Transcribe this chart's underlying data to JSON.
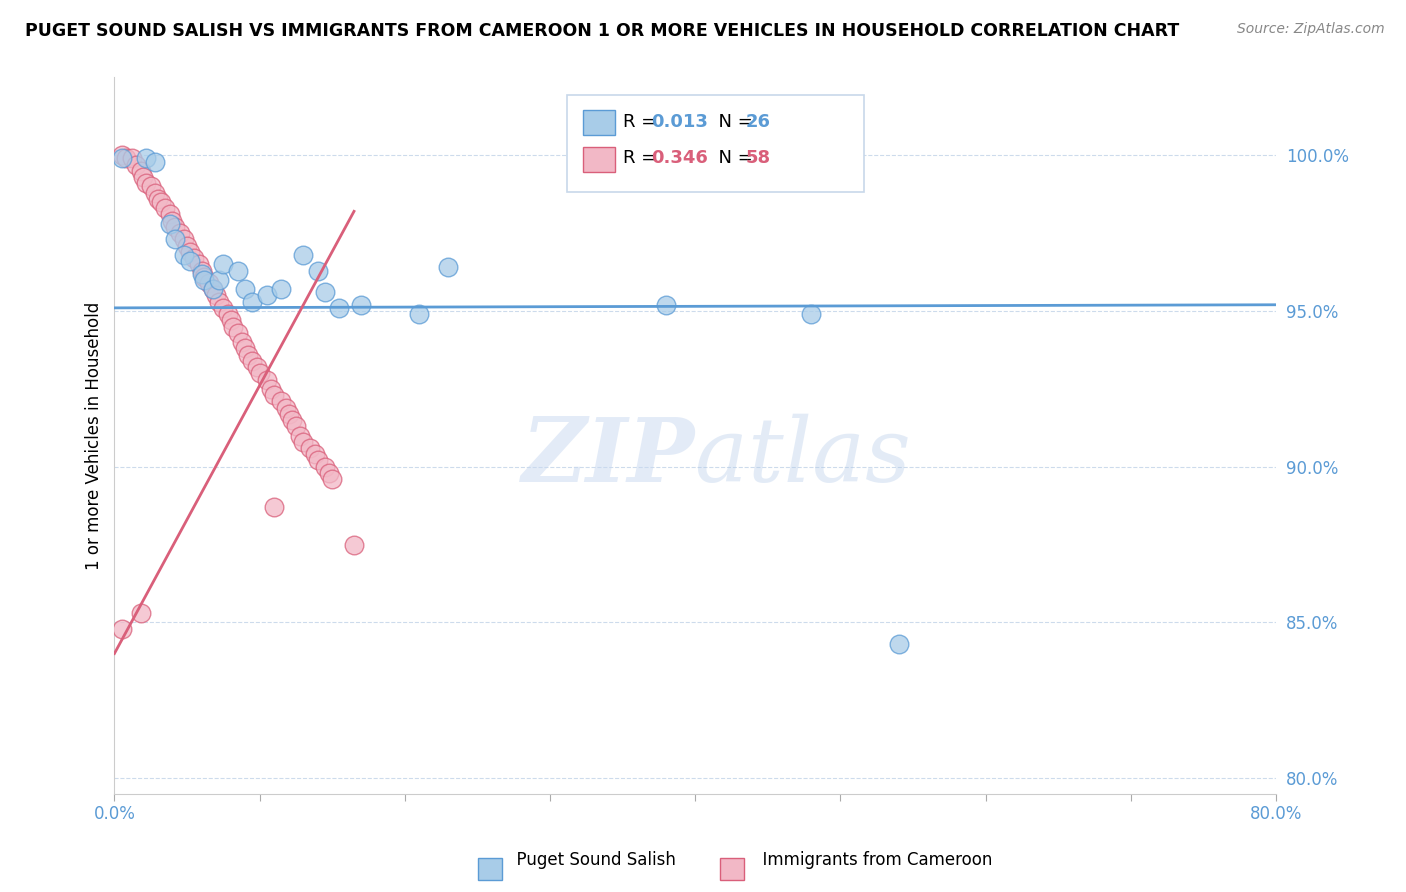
{
  "title": "PUGET SOUND SALISH VS IMMIGRANTS FROM CAMEROON 1 OR MORE VEHICLES IN HOUSEHOLD CORRELATION CHART",
  "source": "Source: ZipAtlas.com",
  "ylabel": "1 or more Vehicles in Household",
  "xlim": [
    0.0,
    0.8
  ],
  "ylim": [
    0.795,
    1.025
  ],
  "color_blue": "#a8cce8",
  "color_pink": "#f2b8c6",
  "line_blue": "#5b9bd5",
  "line_pink": "#d95f7a",
  "legend_text_blue": "#5b9bd5",
  "legend_text_pink": "#d95f7a",
  "watermark_zip": "ZIP",
  "watermark_atlas": "atlas",
  "blue_points": [
    [
      0.005,
      0.999
    ],
    [
      0.022,
      0.999
    ],
    [
      0.028,
      0.998
    ],
    [
      0.038,
      0.978
    ],
    [
      0.042,
      0.973
    ],
    [
      0.048,
      0.968
    ],
    [
      0.052,
      0.966
    ],
    [
      0.06,
      0.962
    ],
    [
      0.062,
      0.96
    ],
    [
      0.068,
      0.957
    ],
    [
      0.072,
      0.96
    ],
    [
      0.075,
      0.965
    ],
    [
      0.085,
      0.963
    ],
    [
      0.09,
      0.957
    ],
    [
      0.095,
      0.953
    ],
    [
      0.105,
      0.955
    ],
    [
      0.115,
      0.957
    ],
    [
      0.13,
      0.968
    ],
    [
      0.14,
      0.963
    ],
    [
      0.145,
      0.956
    ],
    [
      0.155,
      0.951
    ],
    [
      0.17,
      0.952
    ],
    [
      0.21,
      0.949
    ],
    [
      0.23,
      0.964
    ],
    [
      0.38,
      0.952
    ],
    [
      0.48,
      0.949
    ],
    [
      0.54,
      0.843
    ]
  ],
  "pink_points": [
    [
      0.005,
      1.0
    ],
    [
      0.008,
      0.999
    ],
    [
      0.012,
      0.999
    ],
    [
      0.015,
      0.997
    ],
    [
      0.018,
      0.995
    ],
    [
      0.02,
      0.993
    ],
    [
      0.022,
      0.991
    ],
    [
      0.025,
      0.99
    ],
    [
      0.028,
      0.988
    ],
    [
      0.03,
      0.986
    ],
    [
      0.032,
      0.985
    ],
    [
      0.035,
      0.983
    ],
    [
      0.038,
      0.981
    ],
    [
      0.04,
      0.979
    ],
    [
      0.042,
      0.977
    ],
    [
      0.045,
      0.975
    ],
    [
      0.048,
      0.973
    ],
    [
      0.05,
      0.971
    ],
    [
      0.052,
      0.969
    ],
    [
      0.055,
      0.967
    ],
    [
      0.058,
      0.965
    ],
    [
      0.06,
      0.963
    ],
    [
      0.062,
      0.961
    ],
    [
      0.065,
      0.959
    ],
    [
      0.068,
      0.957
    ],
    [
      0.07,
      0.955
    ],
    [
      0.072,
      0.953
    ],
    [
      0.075,
      0.951
    ],
    [
      0.078,
      0.949
    ],
    [
      0.08,
      0.947
    ],
    [
      0.082,
      0.945
    ],
    [
      0.085,
      0.943
    ],
    [
      0.088,
      0.94
    ],
    [
      0.09,
      0.938
    ],
    [
      0.092,
      0.936
    ],
    [
      0.095,
      0.934
    ],
    [
      0.098,
      0.932
    ],
    [
      0.1,
      0.93
    ],
    [
      0.105,
      0.928
    ],
    [
      0.108,
      0.925
    ],
    [
      0.11,
      0.923
    ],
    [
      0.115,
      0.921
    ],
    [
      0.118,
      0.919
    ],
    [
      0.12,
      0.917
    ],
    [
      0.122,
      0.915
    ],
    [
      0.125,
      0.913
    ],
    [
      0.128,
      0.91
    ],
    [
      0.13,
      0.908
    ],
    [
      0.135,
      0.906
    ],
    [
      0.138,
      0.904
    ],
    [
      0.14,
      0.902
    ],
    [
      0.145,
      0.9
    ],
    [
      0.148,
      0.898
    ],
    [
      0.15,
      0.896
    ],
    [
      0.005,
      0.848
    ],
    [
      0.018,
      0.853
    ],
    [
      0.11,
      0.887
    ],
    [
      0.165,
      0.875
    ]
  ],
  "blue_line_x": [
    0.0,
    0.8
  ],
  "blue_line_y": [
    0.951,
    0.952
  ],
  "pink_line_x": [
    0.0,
    0.165
  ],
  "pink_line_y": [
    0.84,
    0.982
  ]
}
